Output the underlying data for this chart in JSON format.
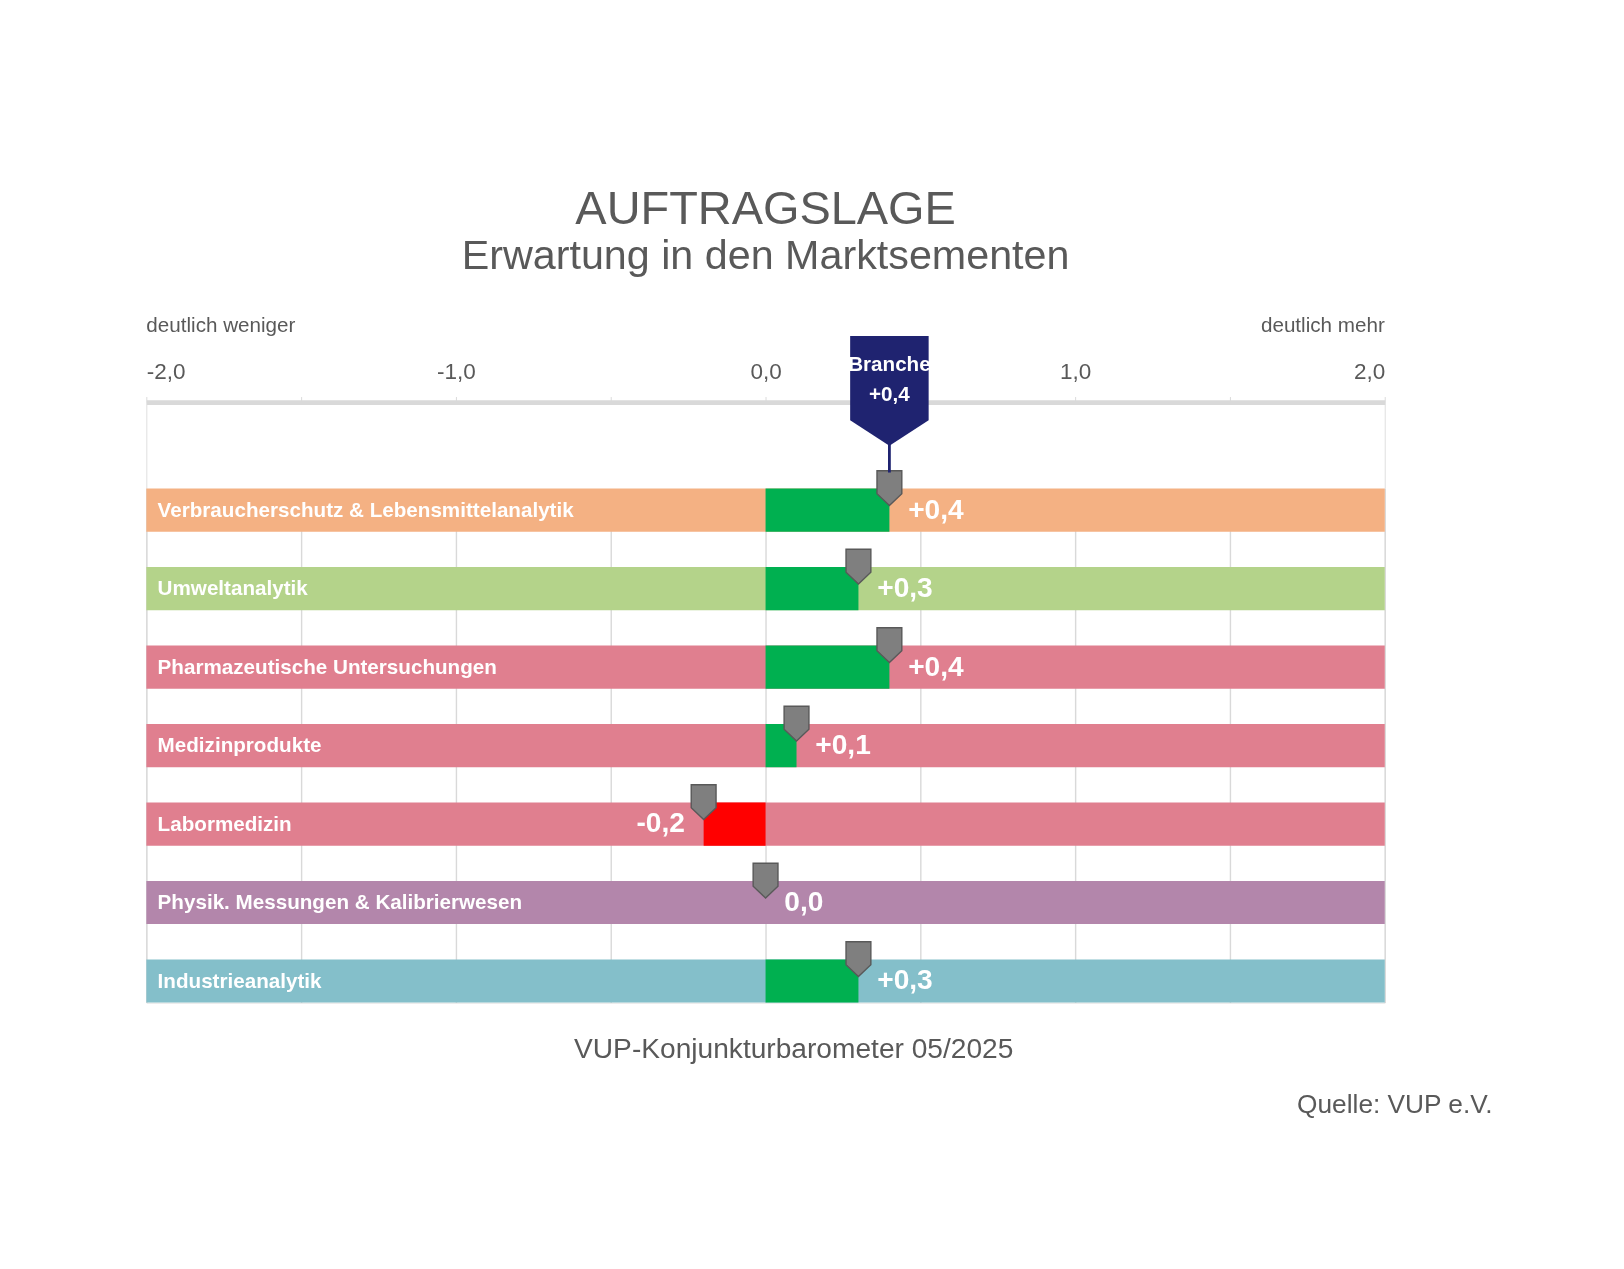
{
  "chart_data": {
    "type": "bar",
    "orientation": "horizontal",
    "title": "AUFTRAGSLAGE",
    "subtitle": "Erwartung in den Marktsementen",
    "categories": [
      "Verbraucherschutz & Lebensmittelanalytik",
      "Umweltanalytik",
      "Pharmazeutische Untersuchungen",
      "Medizinprodukte",
      "Labormedizin",
      "Physik. Messungen & Kalibrierwesen",
      "Industrieanalytik"
    ],
    "series": [
      {
        "type": "bar",
        "base": [
          -2,
          -2,
          -2,
          -2,
          -2,
          -2,
          -2
        ],
        "values": [
          4,
          4,
          4,
          4,
          4,
          4,
          4
        ],
        "colors": [
          "#f4b183",
          "#b4d38a",
          "#e07f8f",
          "#e07f8f",
          "#e07f8f",
          "#b386ab",
          "#84bfca"
        ]
      },
      {
        "type": "bar",
        "values": [
          0.4,
          0.3,
          0.4,
          0.1,
          -0.2,
          0.0,
          0.3
        ],
        "colors": [
          "#00b050",
          "#00b050",
          "#00b050",
          "#00b050",
          "#ff0000",
          "#00b050",
          "#00b050"
        ],
        "value_labels": [
          "+0,4",
          "+0,3",
          "+0,4",
          "+0,1",
          "-0,2",
          "0,0",
          "+0,3"
        ]
      },
      {
        "type": "scatter",
        "values": [
          0.4,
          0.3,
          0.4,
          0.1,
          -0.2,
          0.0,
          0.3
        ],
        "color": "#7f7f7f",
        "marker": "triangle"
      }
    ],
    "xlim": [
      -2,
      2
    ],
    "xticks": [
      {
        "value": -2,
        "label": "-2,0"
      },
      {
        "value": -1.5,
        "label": null
      },
      {
        "value": -1,
        "label": "-1,0"
      },
      {
        "value": -0.5,
        "label": null
      },
      {
        "value": 0,
        "label": "0,0"
      },
      {
        "value": 0.5,
        "label": null
      },
      {
        "value": 1,
        "label": "1,0"
      },
      {
        "value": 1.5,
        "label": null
      },
      {
        "value": 2,
        "label": "2,0"
      }
    ],
    "grid": "x",
    "ref_lines": [
      {
        "axis": "x",
        "value": 0.4,
        "label": "Branche +0,4",
        "color": "#1f2370"
      }
    ],
    "annotations": [
      "deutlich weniger",
      "deutlich mehr",
      "VUP-Konjunkturbarometer 05/2025",
      "Quelle: VUP e.V."
    ]
  }
}
